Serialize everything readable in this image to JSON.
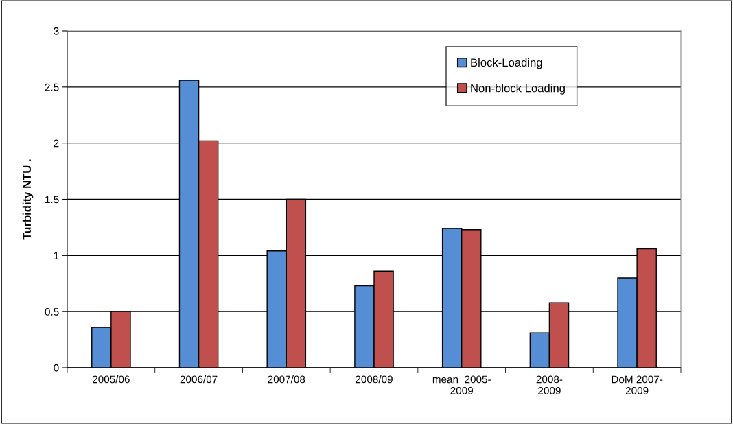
{
  "chart_data": {
    "type": "bar",
    "ylabel": "Turbidity NTU .",
    "categories": [
      "2005/06",
      "2006/07",
      "2007/08",
      "2008/09",
      "mean  2005-\n2009",
      "2008-\n2009",
      "DoM 2007-\n2009"
    ],
    "series": [
      {
        "name": "Block-Loading",
        "color": "#558ed5",
        "values": [
          0.36,
          2.56,
          1.04,
          0.73,
          1.24,
          0.31,
          0.8
        ]
      },
      {
        "name": "Non-block Loading",
        "color": "#c0504d",
        "values": [
          0.5,
          2.02,
          1.5,
          0.86,
          1.23,
          0.58,
          1.06
        ]
      }
    ],
    "ylim": [
      0,
      3
    ],
    "yticks": [
      0,
      0.5,
      1,
      1.5,
      2,
      2.5,
      3
    ],
    "grid": "y",
    "legend": "top right"
  }
}
